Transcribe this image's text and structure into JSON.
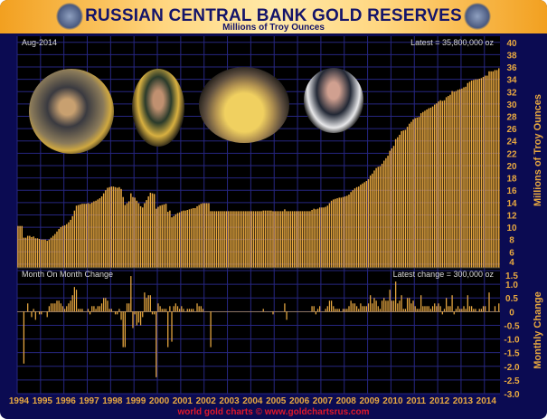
{
  "header": {
    "title": "RUSSIAN CENTRAL BANK GOLD RESERVES",
    "subtitle": "Millions of Troy Ounces",
    "emblem_icon": "bank-of-russia-eagle-emblem",
    "emblem_text": "БАНК РОССИИ"
  },
  "footer": "world gold charts © www.goldchartsrus.com",
  "colors": {
    "background": "#0b0b52",
    "plot": "#000000",
    "grid": "#262680",
    "bars": "#e8a840",
    "axis_text": "#e8a840",
    "footer": "#e0182a"
  },
  "photos": [
    "photo-putin-gold-bars",
    "photo-putin-gold",
    "photo-officials-gold-bar",
    "photo-medvedev"
  ],
  "chart_data": [
    {
      "type": "bar",
      "panel": "upper",
      "date_label": "Aug-2014",
      "annotation": "Latest = 35,800,000 oz",
      "ylabel": "Millions of Troy Ounces",
      "ylim": [
        3.4,
        41
      ],
      "yticks": [
        4,
        6,
        8,
        10,
        12,
        14,
        16,
        18,
        20,
        22,
        24,
        26,
        28,
        30,
        32,
        34,
        36,
        38,
        40
      ],
      "grid": true,
      "x_start": "1994-01",
      "x_end": "2014-08",
      "frequency": "monthly",
      "xticks": [
        "1994",
        "1995",
        "1996",
        "1997",
        "1998",
        "1999",
        "2000",
        "2001",
        "2002",
        "2003",
        "2004",
        "2005",
        "2006",
        "2007",
        "2008",
        "2009",
        "2010",
        "2011",
        "2012",
        "2013",
        "2014"
      ],
      "values": [
        10.2,
        10.2,
        10.2,
        8.3,
        8.3,
        8.6,
        8.6,
        8.4,
        8.5,
        8.2,
        8.2,
        8.1,
        8.0,
        8.0,
        8.0,
        7.8,
        8.0,
        8.3,
        8.6,
        8.9,
        9.3,
        9.7,
        10.0,
        10.2,
        10.3,
        10.5,
        10.8,
        11.2,
        11.8,
        12.7,
        13.5,
        13.6,
        13.7,
        13.8,
        13.8,
        13.8,
        13.9,
        13.8,
        14.0,
        14.2,
        14.3,
        14.5,
        14.7,
        15.0,
        15.5,
        16.0,
        16.4,
        16.5,
        16.6,
        16.6,
        16.5,
        16.4,
        16.5,
        16.2,
        14.9,
        13.6,
        13.9,
        14.2,
        15.5,
        14.9,
        14.8,
        14.3,
        13.9,
        13.4,
        13.2,
        13.9,
        14.4,
        15.0,
        15.6,
        15.5,
        15.4,
        13.0,
        13.3,
        13.5,
        13.6,
        13.7,
        13.8,
        12.5,
        12.7,
        11.6,
        11.8,
        12.1,
        12.3,
        12.4,
        12.6,
        12.7,
        12.7,
        12.8,
        12.9,
        13.0,
        13.1,
        13.1,
        13.4,
        13.6,
        13.8,
        13.9,
        13.9,
        13.9,
        13.9,
        12.6,
        12.6,
        12.6,
        12.6,
        12.6,
        12.6,
        12.6,
        12.6,
        12.6,
        12.6,
        12.6,
        12.6,
        12.6,
        12.6,
        12.6,
        12.6,
        12.6,
        12.6,
        12.6,
        12.6,
        12.6,
        12.6,
        12.6,
        12.6,
        12.6,
        12.6,
        12.6,
        12.7,
        12.7,
        12.7,
        12.7,
        12.7,
        12.6,
        12.6,
        12.6,
        12.6,
        12.6,
        12.6,
        12.9,
        12.6,
        12.6,
        12.6,
        12.6,
        12.6,
        12.6,
        12.6,
        12.6,
        12.6,
        12.6,
        12.6,
        12.6,
        12.6,
        12.8,
        13.0,
        12.9,
        13.0,
        13.2,
        13.2,
        13.2,
        13.3,
        13.5,
        13.9,
        14.3,
        14.5,
        14.6,
        14.7,
        14.8,
        14.8,
        14.9,
        15.0,
        15.1,
        15.3,
        15.7,
        16.0,
        16.3,
        16.5,
        16.6,
        16.9,
        17.1,
        17.3,
        17.5,
        17.8,
        18.4,
        18.7,
        19.2,
        19.6,
        19.8,
        19.9,
        20.3,
        20.8,
        21.2,
        21.6,
        22.4,
        22.8,
        23.2,
        24.3,
        24.6,
        25.0,
        25.6,
        25.7,
        25.8,
        26.3,
        26.8,
        27.1,
        27.5,
        27.7,
        27.8,
        27.9,
        28.5,
        28.7,
        28.9,
        29.1,
        29.3,
        29.4,
        29.6,
        29.9,
        30.1,
        30.4,
        30.6,
        30.5,
        30.6,
        31.1,
        31.3,
        31.5,
        32.1,
        32.0,
        32.1,
        32.3,
        32.4,
        32.5,
        32.7,
        32.8,
        33.4,
        33.6,
        33.8,
        33.9,
        34.0,
        34.0,
        34.1,
        34.2,
        34.4,
        34.6,
        34.6,
        35.3,
        35.3,
        35.3,
        35.5,
        35.5,
        35.8
      ]
    },
    {
      "type": "bar",
      "panel": "lower",
      "title": "Month On Month Change",
      "annotation": "Latest change = 300,000 oz",
      "ylabel": "Monthly Change",
      "ylim": [
        -3.0,
        1.6
      ],
      "yticks": [
        "1.5",
        "1.0",
        "0.5",
        "0",
        "-0.5",
        "-1.0",
        "-1.5",
        "-2.0",
        "-2.5",
        "-3.0"
      ],
      "grid": true,
      "values_source": "month-on-month difference of upper panel values"
    }
  ]
}
